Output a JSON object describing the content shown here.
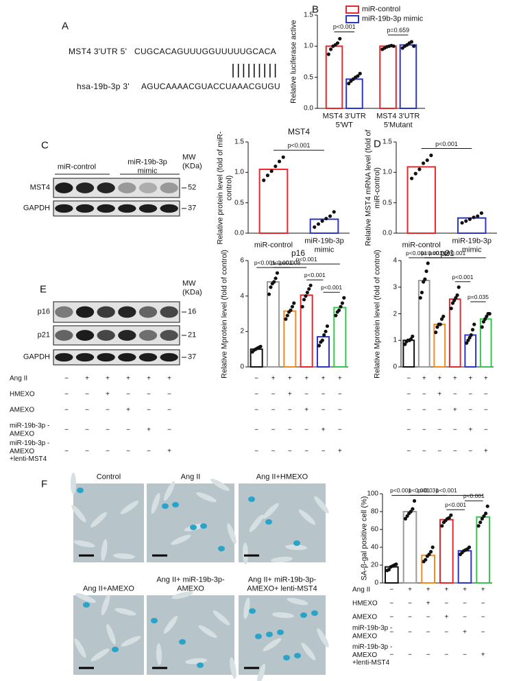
{
  "panel_labels": [
    "A",
    "B",
    "C",
    "D",
    "E",
    "F"
  ],
  "sequence": {
    "utr_label": "MST4 3'UTR 5'",
    "utr_seq": "CUGCACAGUUUGGUUUUUGCACA",
    "mirna_label": "hsa-19b-3p 3'",
    "mirna_seq": "AGUCAAAACGUACCUAAACGUGU"
  },
  "blot_c": {
    "groups": [
      "miR-control",
      "miR-19b-3p mimic"
    ],
    "mw_label": "MW (KDa)",
    "rows": [
      {
        "label": "MST4",
        "mw": 52
      },
      {
        "label": "GAPDH",
        "mw": 37
      }
    ]
  },
  "blot_e": {
    "mw_label": "MW (KDa)",
    "rows": [
      {
        "label": "p16",
        "mw": 16
      },
      {
        "label": "p21",
        "mw": 21
      },
      {
        "label": "GAPDH",
        "mw": 37
      }
    ]
  },
  "treatments": [
    {
      "label": "Ang II",
      "signs": [
        "−",
        "+",
        "+",
        "+",
        "+",
        "+"
      ]
    },
    {
      "label": "HMEXO",
      "signs": [
        "−",
        "−",
        "+",
        "−",
        "−",
        "−"
      ]
    },
    {
      "label": "AMEXO",
      "signs": [
        "−",
        "−",
        "−",
        "+",
        "−",
        "−"
      ]
    },
    {
      "label": "miR-19b-3p -AMEXO",
      "signs": [
        "−",
        "−",
        "−",
        "−",
        "+",
        "−"
      ]
    },
    {
      "label": "miR-19b-3p -AMEXO +lenti-MST4",
      "signs": [
        "−",
        "−",
        "−",
        "−",
        "−",
        "+"
      ]
    }
  ],
  "images": [
    {
      "caption": "Control"
    },
    {
      "caption": "Ang II"
    },
    {
      "caption": "Ang II+HMEXO"
    },
    {
      "caption": "Ang II+AMEXO"
    },
    {
      "caption": "Ang II+ miR-19b-3p-AMEXO"
    },
    {
      "caption": "Ang II+ miR-19b-3p-AMEXO+ lenti-MST4"
    }
  ],
  "chart_data": [
    {
      "type": "bar",
      "ylabel": "Relative luciferase active",
      "categories": [
        "MST4 3'UTR 5'WT",
        "MST4 3'UTR 5'Mutant"
      ],
      "series": [
        {
          "name": "miR-control",
          "color": "#e8262b",
          "values": [
            1.0,
            1.0
          ],
          "points": [
            [
              0.87,
              0.95,
              1.0,
              1.02,
              1.05,
              1.12
            ],
            [
              0.95,
              0.97,
              0.99,
              1.0,
              1.01,
              1.0
            ]
          ]
        },
        {
          "name": "miR-19b-3p mimic",
          "color": "#2b35c9",
          "values": [
            0.47,
            1.02
          ],
          "points": [
            [
              0.4,
              0.44,
              0.47,
              0.5,
              0.52,
              0.56
            ],
            [
              0.97,
              1.0,
              1.02,
              1.05,
              1.07,
              1.0
            ]
          ]
        }
      ],
      "ylim": [
        0,
        1.5
      ],
      "yticks": [
        {
          "value": 0,
          "label": "0.0"
        },
        0.5,
        {
          "value": 1,
          "label": "1.0"
        },
        1.5
      ],
      "annotations": [
        "p<0.001",
        "p=0.659"
      ],
      "legend": "top"
    },
    {
      "type": "bar",
      "title": "MST4",
      "ylabel": "Relative protein level (fold of miR-control)",
      "categories": [
        "miR-control",
        "miR-19b-3p mimic"
      ],
      "values": [
        1.05,
        0.23
      ],
      "colors": [
        "#e8262b",
        "#2b35c9"
      ],
      "points": [
        [
          0.87,
          0.95,
          1.02,
          1.1,
          1.18,
          1.25
        ],
        [
          0.1,
          0.15,
          0.2,
          0.24,
          0.28,
          0.35
        ]
      ],
      "ylim": [
        0,
        1.5
      ],
      "yticks": [
        {
          "value": 0,
          "label": "0.0"
        },
        0.5,
        {
          "value": 1,
          "label": "1.0"
        },
        1.5
      ],
      "annotations": [
        "p<0.001"
      ]
    },
    {
      "type": "bar",
      "ylabel": "Relative MST4 mRNA level (fold of miR-control)",
      "categories": [
        "miR-control",
        "miR-19b-3p mimic"
      ],
      "values": [
        1.09,
        0.25
      ],
      "colors": [
        "#e8262b",
        "#2b35c9"
      ],
      "points": [
        [
          0.9,
          0.98,
          1.05,
          1.15,
          1.2,
          1.28
        ],
        [
          0.17,
          0.2,
          0.23,
          0.26,
          0.28,
          0.33
        ]
      ],
      "ylim": [
        0,
        1.5
      ],
      "yticks": [
        {
          "value": 0,
          "label": "0.0"
        },
        0.5,
        {
          "value": 1,
          "label": "1.0"
        },
        1.5
      ],
      "annotations": [
        "p<0.001"
      ]
    },
    {
      "type": "bar",
      "title": "p16",
      "ylabel": "Relative Mprotein level (fold of control)",
      "categories": [
        null,
        null,
        null,
        null,
        null,
        null
      ],
      "values": [
        1.0,
        4.8,
        3.15,
        4.05,
        1.7,
        3.35
      ],
      "colors": [
        "#111111",
        "#9a9a9a",
        "#f28a1e",
        "#e8262b",
        "#2b35c9",
        "#33c84a"
      ],
      "points": [
        [
          0.85,
          0.95,
          1.0,
          1.05,
          1.1,
          1.15
        ],
        [
          4.1,
          4.5,
          4.7,
          4.8,
          5.0,
          5.3
        ],
        [
          2.7,
          2.9,
          3.1,
          3.2,
          3.4,
          3.6
        ],
        [
          3.4,
          3.8,
          4.0,
          4.2,
          4.4,
          4.6
        ],
        [
          1.2,
          1.4,
          1.5,
          1.8,
          2.0,
          2.3
        ],
        [
          2.9,
          3.1,
          3.2,
          3.4,
          3.6,
          3.9
        ]
      ],
      "ylim": [
        0,
        6
      ],
      "yticks": [
        0,
        2,
        4,
        6
      ],
      "annotations": [
        "p<0.001",
        "p<0.001",
        "p=0.008",
        "p<0.001",
        "p<0.001",
        "p<0.001"
      ]
    },
    {
      "type": "bar",
      "title": "p21",
      "ylabel": "Relative Mprotein level (fold of control)",
      "categories": [
        null,
        null,
        null,
        null,
        null,
        null
      ],
      "values": [
        1.0,
        3.25,
        1.6,
        2.55,
        1.2,
        1.8
      ],
      "colors": [
        "#111111",
        "#9a9a9a",
        "#f28a1e",
        "#e8262b",
        "#2b35c9",
        "#33c84a"
      ],
      "points": [
        [
          0.85,
          0.95,
          1.0,
          1.0,
          1.05,
          1.15
        ],
        [
          2.6,
          2.8,
          3.2,
          3.3,
          3.6,
          3.9
        ],
        [
          1.3,
          1.5,
          1.6,
          1.6,
          1.8,
          1.9
        ],
        [
          2.2,
          2.4,
          2.5,
          2.6,
          2.7,
          3.0
        ],
        [
          0.9,
          1.0,
          1.1,
          1.2,
          1.4,
          1.6
        ],
        [
          1.5,
          1.7,
          1.8,
          1.9,
          2.0,
          2.0
        ]
      ],
      "ylim": [
        0,
        4
      ],
      "yticks": [
        0,
        1,
        2,
        3,
        4
      ],
      "annotations": [
        "p<0.001",
        "p<0.001",
        "p=0.019",
        "p<0.001",
        "p<0.001",
        "p=0.035"
      ]
    },
    {
      "type": "bar",
      "ylabel": "SA-β-gal positive cell (%)",
      "categories": [
        null,
        null,
        null,
        null,
        null,
        null
      ],
      "values": [
        18,
        80,
        31,
        71,
        36,
        74
      ],
      "colors": [
        "#111111",
        "#9a9a9a",
        "#f28a1e",
        "#e8262b",
        "#2b35c9",
        "#33c84a"
      ],
      "points": [
        [
          14,
          15,
          18,
          19,
          20,
          21
        ],
        [
          72,
          75,
          78,
          80,
          83,
          92
        ],
        [
          24,
          26,
          30,
          32,
          35,
          40
        ],
        [
          64,
          68,
          70,
          72,
          73,
          76
        ],
        [
          32,
          34,
          36,
          37,
          38,
          40
        ],
        [
          64,
          68,
          72,
          75,
          78,
          86
        ]
      ],
      "ylim": [
        0,
        100
      ],
      "yticks": [
        0,
        20,
        40,
        60,
        80,
        100
      ],
      "annotations": [
        "p<0.001",
        "p<0.001",
        "p=0.031",
        "p<0.001",
        "p<0.001",
        "p<0.001"
      ]
    }
  ]
}
